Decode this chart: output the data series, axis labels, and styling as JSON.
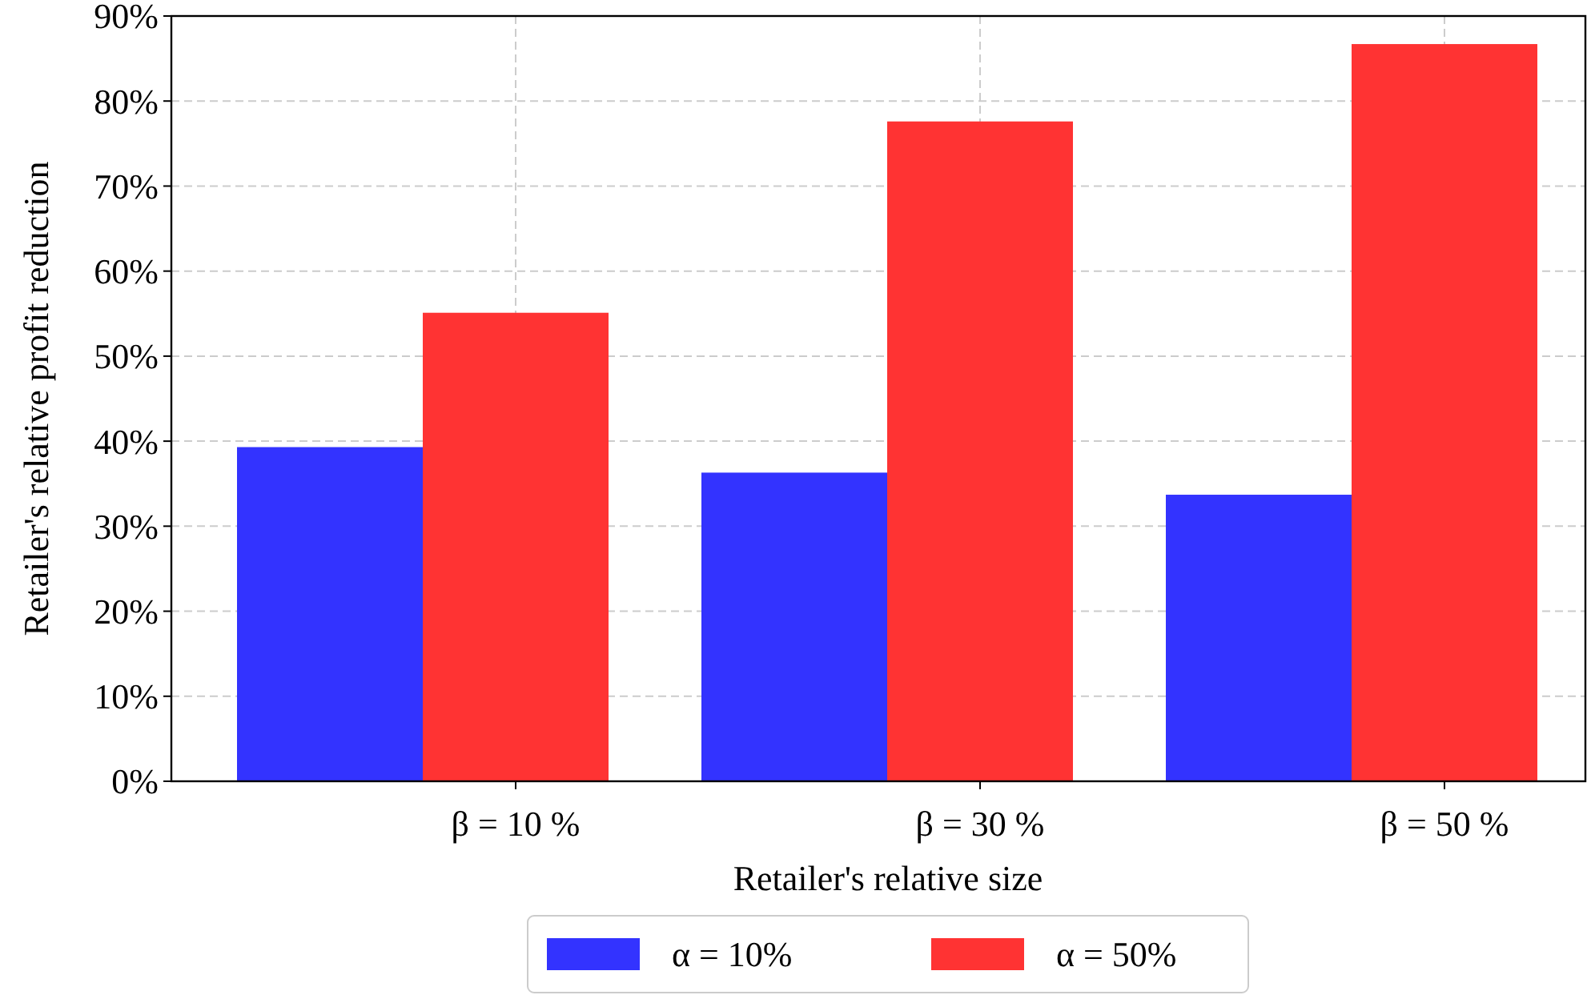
{
  "chart_data": {
    "type": "bar",
    "xlabel": "Retailer's relative size",
    "ylabel": "Retailer's relative profit reduction",
    "categories": [
      "β = 10 %",
      "β = 30 %",
      "β = 50 %"
    ],
    "series": [
      {
        "name": "α = 10%",
        "color": "#3333ff",
        "values": [
          39.3,
          36.3,
          33.7
        ]
      },
      {
        "name": "α = 50%",
        "color": "#ff3333",
        "values": [
          55.1,
          77.6,
          86.7
        ]
      }
    ],
    "ylim": [
      0,
      90
    ],
    "yticks": [
      {
        "value": 0,
        "label": "0%"
      },
      {
        "value": 10,
        "label": "10%"
      },
      {
        "value": 20,
        "label": "20%"
      },
      {
        "value": 30,
        "label": "30%"
      },
      {
        "value": 40,
        "label": "40%"
      },
      {
        "value": 50,
        "label": "50%"
      },
      {
        "value": 60,
        "label": "60%"
      },
      {
        "value": 70,
        "label": "70%"
      },
      {
        "value": 80,
        "label": "80%"
      },
      {
        "value": 90,
        "label": "90%"
      }
    ],
    "grid": true,
    "legend": "bottom"
  }
}
